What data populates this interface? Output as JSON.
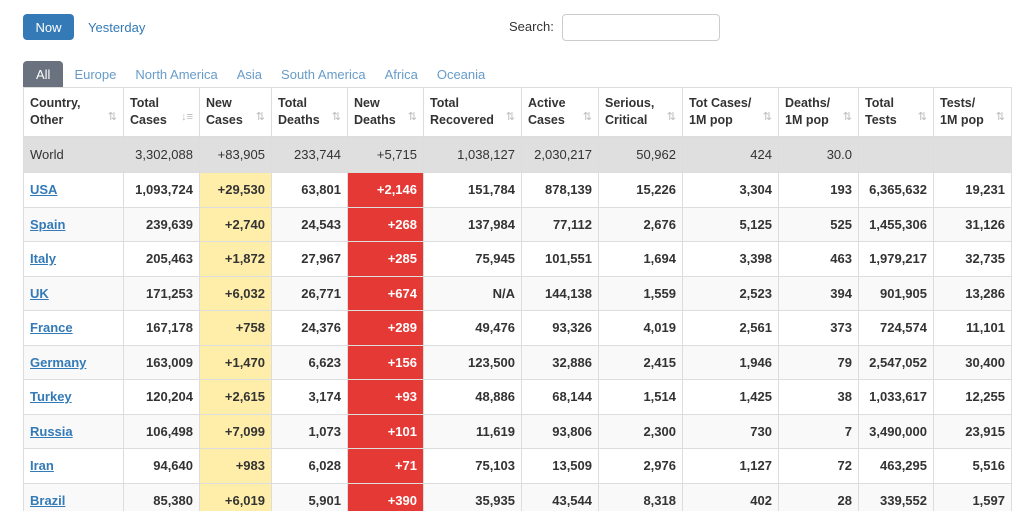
{
  "controls": {
    "now_label": "Now",
    "yesterday_label": "Yesterday",
    "search_label": "Search:",
    "search_value": ""
  },
  "tabs": [
    "All",
    "Europe",
    "North America",
    "Asia",
    "South America",
    "Africa",
    "Oceania"
  ],
  "columns": [
    [
      "Country,",
      "Other"
    ],
    [
      "Total",
      "Cases"
    ],
    [
      "New",
      "Cases"
    ],
    [
      "Total",
      "Deaths"
    ],
    [
      "New",
      "Deaths"
    ],
    [
      "Total",
      "Recovered"
    ],
    [
      "Active",
      "Cases"
    ],
    [
      "Serious,",
      "Critical"
    ],
    [
      "Tot Cases/",
      "1M pop"
    ],
    [
      "Deaths/",
      "1M pop"
    ],
    [
      "Total",
      "Tests"
    ],
    [
      "Tests/",
      "1M pop"
    ]
  ],
  "world": [
    "World",
    "3,302,088",
    "+83,905",
    "233,744",
    "+5,715",
    "1,038,127",
    "2,030,217",
    "50,962",
    "424",
    "30.0",
    "",
    ""
  ],
  "rows": [
    [
      "USA",
      "1,093,724",
      "+29,530",
      "63,801",
      "+2,146",
      "151,784",
      "878,139",
      "15,226",
      "3,304",
      "193",
      "6,365,632",
      "19,231"
    ],
    [
      "Spain",
      "239,639",
      "+2,740",
      "24,543",
      "+268",
      "137,984",
      "77,112",
      "2,676",
      "5,125",
      "525",
      "1,455,306",
      "31,126"
    ],
    [
      "Italy",
      "205,463",
      "+1,872",
      "27,967",
      "+285",
      "75,945",
      "101,551",
      "1,694",
      "3,398",
      "463",
      "1,979,217",
      "32,735"
    ],
    [
      "UK",
      "171,253",
      "+6,032",
      "26,771",
      "+674",
      "N/A",
      "144,138",
      "1,559",
      "2,523",
      "394",
      "901,905",
      "13,286"
    ],
    [
      "France",
      "167,178",
      "+758",
      "24,376",
      "+289",
      "49,476",
      "93,326",
      "4,019",
      "2,561",
      "373",
      "724,574",
      "11,101"
    ],
    [
      "Germany",
      "163,009",
      "+1,470",
      "6,623",
      "+156",
      "123,500",
      "32,886",
      "2,415",
      "1,946",
      "79",
      "2,547,052",
      "30,400"
    ],
    [
      "Turkey",
      "120,204",
      "+2,615",
      "3,174",
      "+93",
      "48,886",
      "68,144",
      "1,514",
      "1,425",
      "38",
      "1,033,617",
      "12,255"
    ],
    [
      "Russia",
      "106,498",
      "+7,099",
      "1,073",
      "+101",
      "11,619",
      "93,806",
      "2,300",
      "730",
      "7",
      "3,490,000",
      "23,915"
    ],
    [
      "Iran",
      "94,640",
      "+983",
      "6,028",
      "+71",
      "75,103",
      "13,509",
      "2,976",
      "1,127",
      "72",
      "463,295",
      "5,516"
    ],
    [
      "Brazil",
      "85,380",
      "+6,019",
      "5,901",
      "+390",
      "35,935",
      "43,544",
      "8,318",
      "402",
      "28",
      "339,552",
      "1,597"
    ]
  ],
  "colors": {
    "accent": "#337ab7",
    "new_cases_bg": "#ffeeaa",
    "new_deaths_bg": "#e53935",
    "world_row_bg": "#dfdfdf"
  }
}
